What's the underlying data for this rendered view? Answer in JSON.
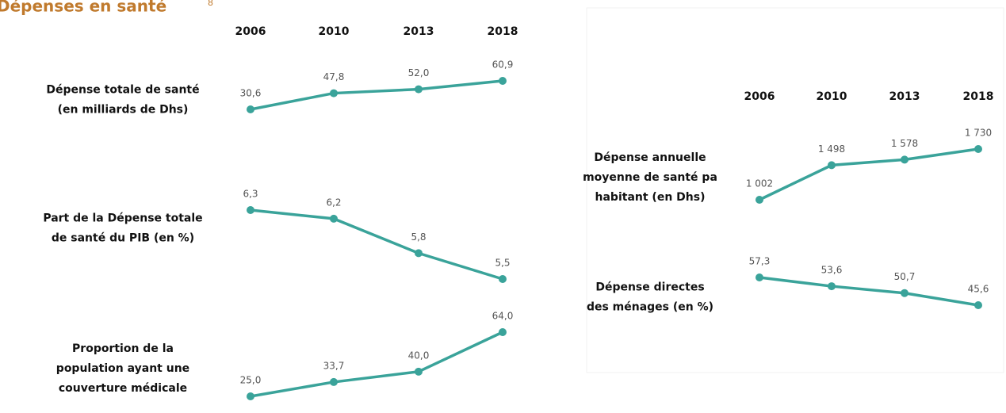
{
  "title": "Dépenses en santé",
  "title_note": "8",
  "chart_data": [
    {
      "type": "line",
      "title": "Dépense totale de santé (en milliards de Dhs)",
      "categories": [
        "2006",
        "2010",
        "2013",
        "2018"
      ],
      "values": [
        30.6,
        47.8,
        52.0,
        60.9
      ],
      "value_labels": [
        "30,6",
        "47,8",
        "52,0",
        "60,9"
      ],
      "color": "#3aa39a"
    },
    {
      "type": "line",
      "title": "Part de la Dépense totale de santé du PIB (en %)",
      "categories": [
        "2006",
        "2010",
        "2013",
        "2018"
      ],
      "values": [
        6.3,
        6.2,
        5.8,
        5.5
      ],
      "value_labels": [
        "6,3",
        "6,2",
        "5,8",
        "5,5"
      ],
      "color": "#3aa39a"
    },
    {
      "type": "line",
      "title": "Proportion de la population ayant une couverture médicale",
      "categories": [
        "2006",
        "2010",
        "2013",
        "2018"
      ],
      "values": [
        25.0,
        33.7,
        40.0,
        64.0
      ],
      "value_labels": [
        "25,0",
        "33,7",
        "40,0",
        "64,0"
      ],
      "color": "#3aa39a"
    },
    {
      "type": "line",
      "title": "Dépense annuelle moyenne de santé pa habitant (en Dhs)",
      "categories": [
        "2006",
        "2010",
        "2013",
        "2018"
      ],
      "values": [
        1002,
        1498,
        1578,
        1730
      ],
      "value_labels": [
        "1 002",
        "1 498",
        "1 578",
        "1 730"
      ],
      "color": "#3aa39a"
    },
    {
      "type": "line",
      "title": "Dépense directes des ménages (en %)",
      "categories": [
        "2006",
        "2010",
        "2013",
        "2018"
      ],
      "values": [
        57.3,
        53.6,
        50.7,
        45.6
      ],
      "value_labels": [
        "57,3",
        "53,6",
        "50,7",
        "45,6"
      ],
      "color": "#3aa39a"
    }
  ]
}
